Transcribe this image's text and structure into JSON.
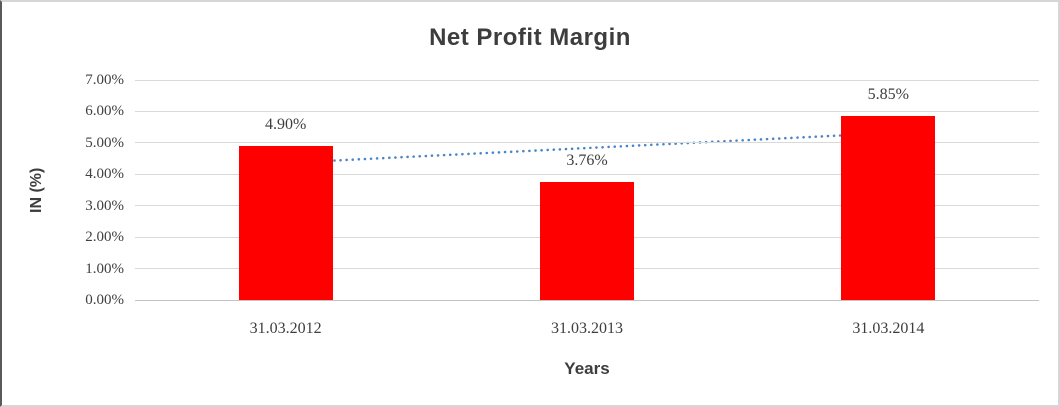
{
  "chart_data": {
    "type": "bar",
    "title": "Net Profit Margin",
    "xlabel": "Years",
    "ylabel": "IN (%)",
    "categories": [
      "31.03.2012",
      "31.03.2013",
      "31.03.2014"
    ],
    "values": [
      4.9,
      3.76,
      5.85
    ],
    "value_labels": [
      "4.90%",
      "3.76%",
      "5.85%"
    ],
    "ytick_labels": [
      "0.00%",
      "1.00%",
      "2.00%",
      "3.00%",
      "4.00%",
      "5.00%",
      "6.00%",
      "7.00%"
    ],
    "ylim": [
      0,
      7
    ],
    "grid": "horizontal",
    "legend": "none",
    "bar_color": "#ff0000",
    "gridline_color": "#d9d9d9",
    "text_color": "#3d3d3d",
    "trendline": {
      "style": "dotted",
      "color": "#4a86c6",
      "start_value": 4.36,
      "end_value": 5.31
    }
  }
}
